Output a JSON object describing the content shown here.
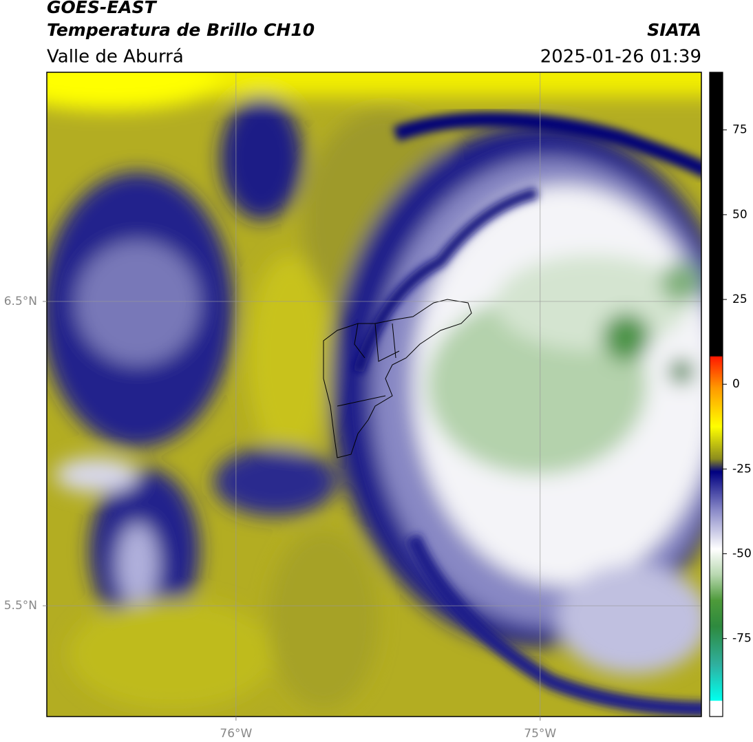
{
  "header": {
    "satellite": "GOES-EAST",
    "title": "Temperatura de Brillo CH10",
    "region": "Valle de Aburrá",
    "source": "SIATA",
    "datetime": "2025-01-26 01:39"
  },
  "map": {
    "xlim": [
      -76.622,
      -74.47
    ],
    "ylim": [
      5.136,
      7.253
    ],
    "xticks": [
      {
        "value": -76,
        "label": "76°W"
      },
      {
        "value": -75,
        "label": "75°W"
      }
    ],
    "yticks": [
      {
        "value": 6.5,
        "label": "6.5°N"
      },
      {
        "value": 5.5,
        "label": "5.5°N"
      }
    ],
    "grid": true
  },
  "colorbar": {
    "lim": [
      -98,
      92
    ],
    "ticks": [
      75,
      50,
      25,
      0,
      -25,
      -50,
      -75
    ]
  }
}
